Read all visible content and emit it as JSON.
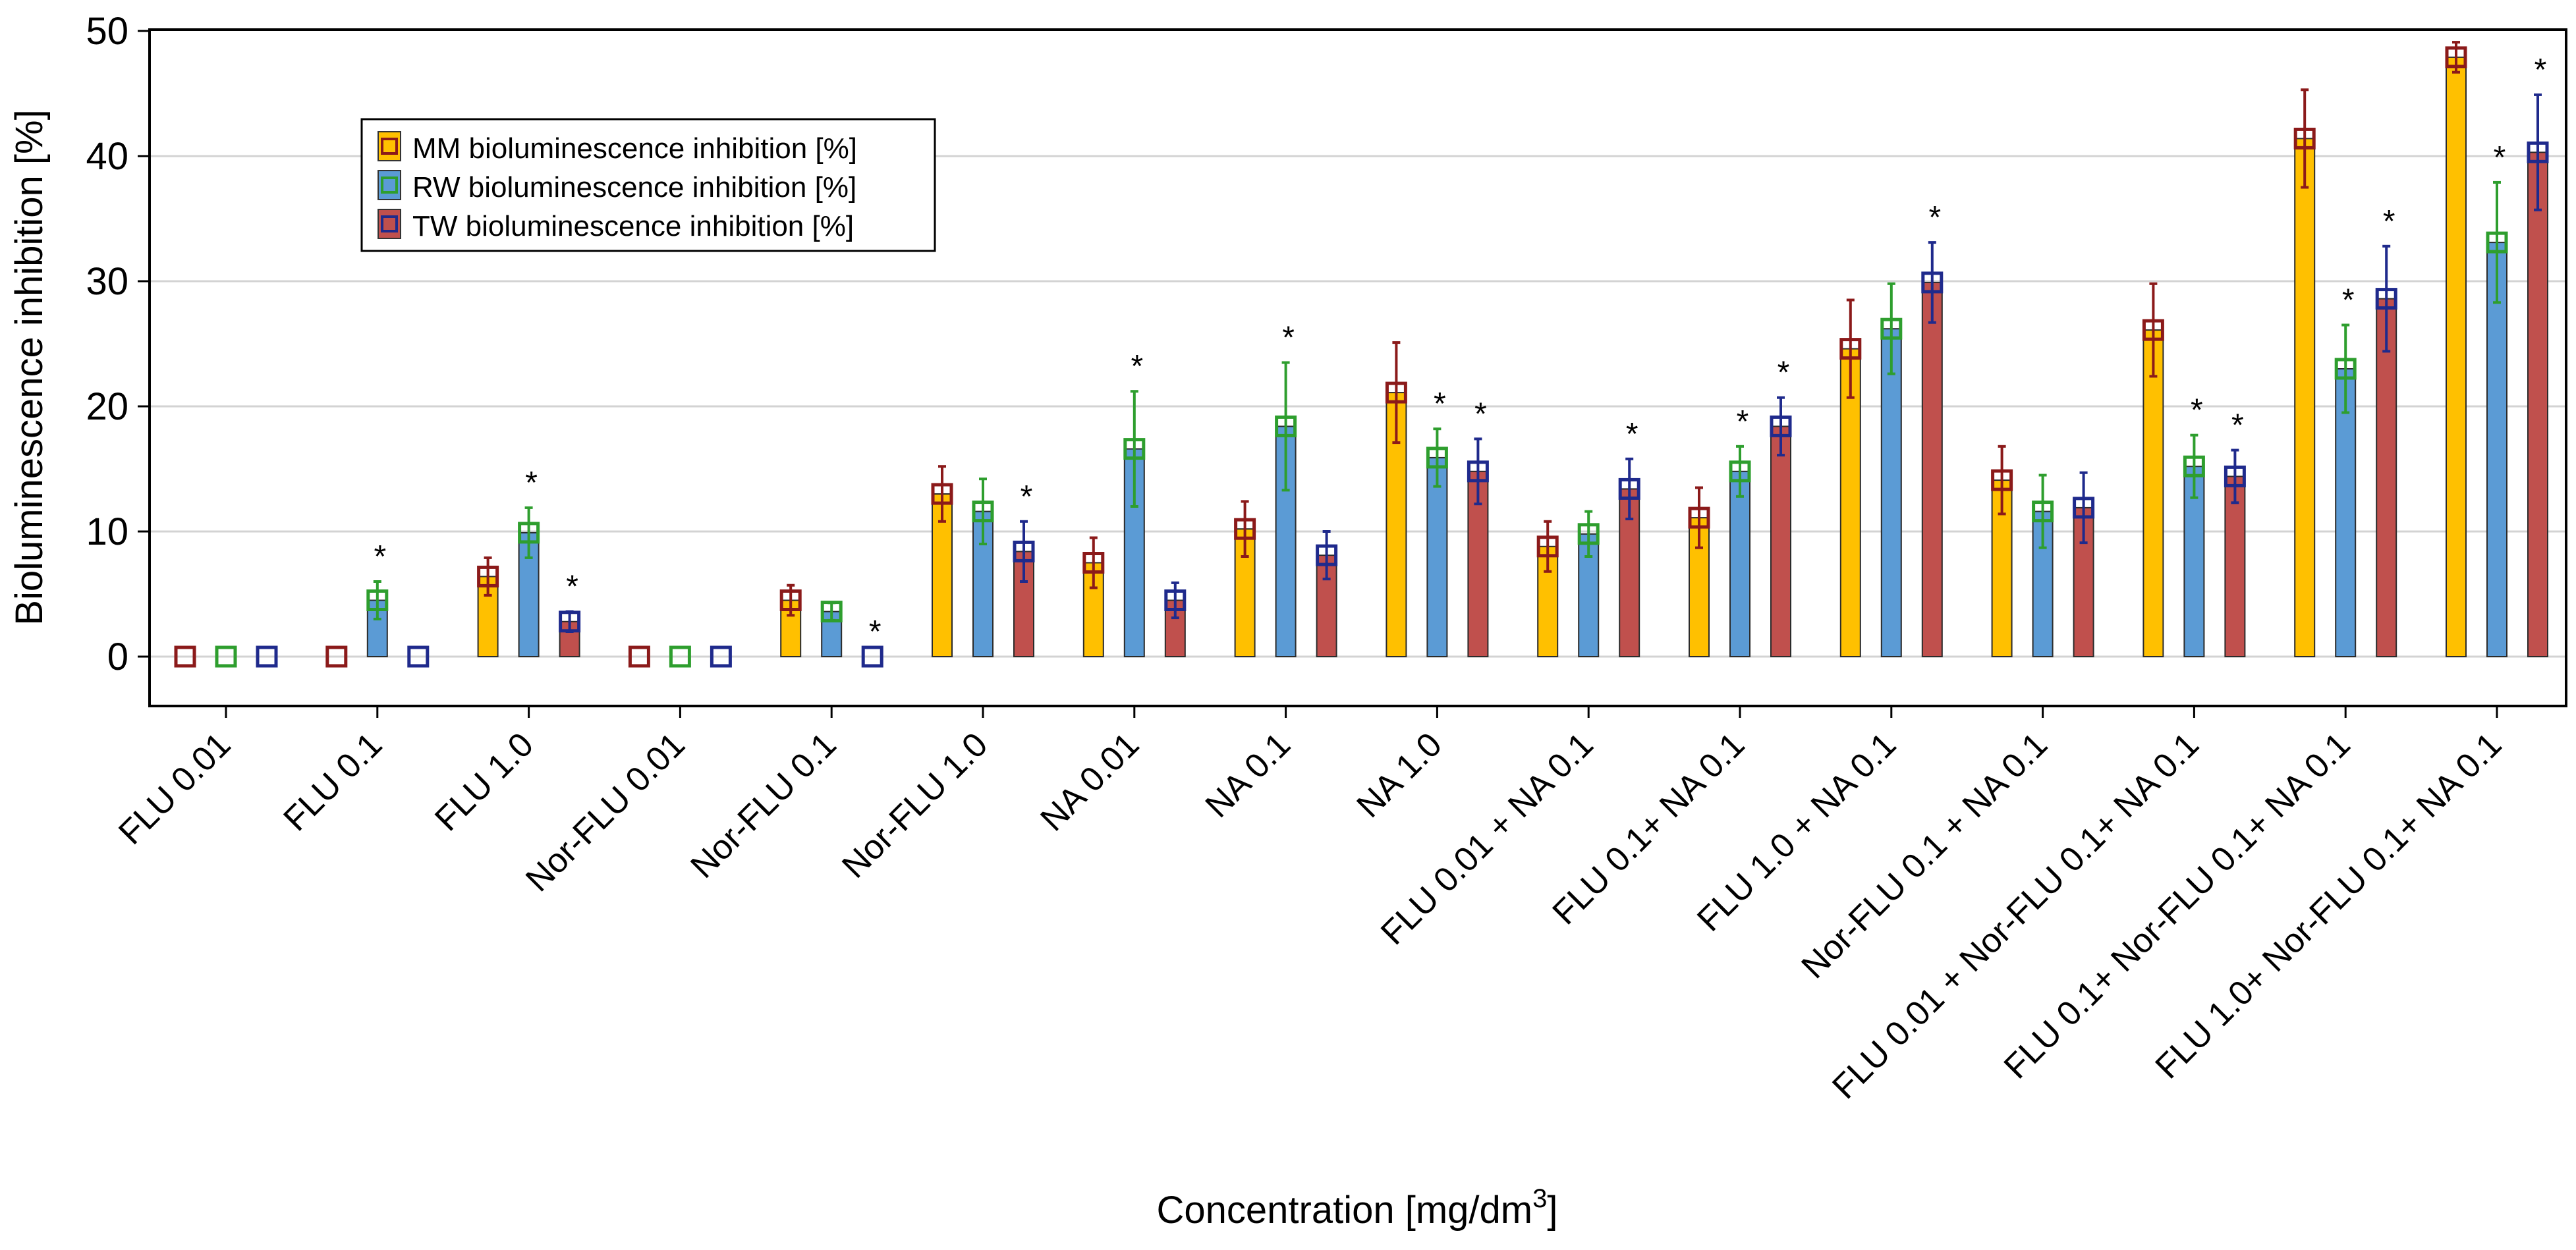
{
  "chart_data": {
    "type": "bar",
    "title": "",
    "ylabel": "Bioluminescence inhibition [%]",
    "xlabel": "Concentration [mg/dm",
    "xlabel_sup": "3",
    "xlabel_close": "]",
    "ylim": [
      -4,
      50
    ],
    "yticks": [
      0,
      10,
      20,
      30,
      40,
      50
    ],
    "grid": true,
    "legend_position": "top-left",
    "significance_marker": "*",
    "categories": [
      "FLU 0.01",
      "FLU 0.1",
      "FLU 1.0",
      "Nor-FLU 0.01",
      "Nor-FLU 0.1",
      "Nor-FLU 1.0",
      "NA 0.01",
      "NA 0.1",
      "NA 1.0",
      "FLU 0.01 + NA 0.1",
      "FLU 0.1+ NA 0.1",
      "FLU 1.0 + NA 0.1",
      "Nor-FLU 0.1 + NA 0.1",
      "FLU 0.01 + Nor-FLU 0.1+ NA 0.1",
      "FLU 0.1+ Nor-FLU 0.1+ NA 0.1",
      "FLU 1.0+ Nor-FLU 0.1+ NA 0.1"
    ],
    "series": [
      {
        "name": "MM bioluminescence inhibition [%]",
        "color": "#FFC000",
        "marker_color": "#8B1A1A",
        "values": [
          0,
          0,
          6.4,
          0,
          4.5,
          13.0,
          7.5,
          10.2,
          21.1,
          8.8,
          11.1,
          24.6,
          14.1,
          26.1,
          41.4,
          47.9
        ],
        "errors": [
          0,
          0,
          1.5,
          0,
          1.2,
          2.2,
          2.0,
          2.2,
          4.0,
          2.0,
          2.4,
          3.9,
          2.7,
          3.7,
          3.9,
          1.2
        ],
        "significant": [
          false,
          false,
          false,
          false,
          false,
          false,
          false,
          false,
          false,
          false,
          false,
          false,
          false,
          false,
          false,
          false
        ]
      },
      {
        "name": "RW bioluminescence inhibition [%]",
        "color": "#5B9BD5",
        "marker_color": "#2E9E2E",
        "values": [
          0,
          4.5,
          9.9,
          0,
          3.6,
          11.6,
          16.6,
          18.4,
          15.9,
          9.8,
          14.8,
          26.2,
          11.6,
          15.2,
          23.0,
          33.1
        ],
        "errors": [
          0,
          1.5,
          2.0,
          0,
          0.7,
          2.6,
          4.6,
          5.1,
          2.3,
          1.8,
          2.0,
          3.6,
          2.9,
          2.5,
          3.5,
          4.8
        ],
        "significant": [
          false,
          true,
          true,
          false,
          false,
          false,
          true,
          true,
          true,
          false,
          true,
          false,
          false,
          true,
          true,
          true
        ]
      },
      {
        "name": "TW bioluminescence inhibition [%]",
        "color": "#C0504D",
        "marker_color": "#1F2A8C",
        "values": [
          0,
          0,
          2.8,
          0,
          0,
          8.4,
          4.5,
          8.1,
          14.8,
          13.4,
          18.4,
          29.9,
          11.9,
          14.4,
          28.6,
          40.3
        ],
        "errors": [
          0,
          0,
          0.8,
          0,
          0,
          2.4,
          1.4,
          1.9,
          2.6,
          2.4,
          2.3,
          3.2,
          2.8,
          2.1,
          4.2,
          4.6
        ],
        "significant": [
          false,
          false,
          true,
          false,
          true,
          true,
          false,
          false,
          true,
          true,
          true,
          true,
          false,
          true,
          true,
          true
        ]
      }
    ]
  }
}
